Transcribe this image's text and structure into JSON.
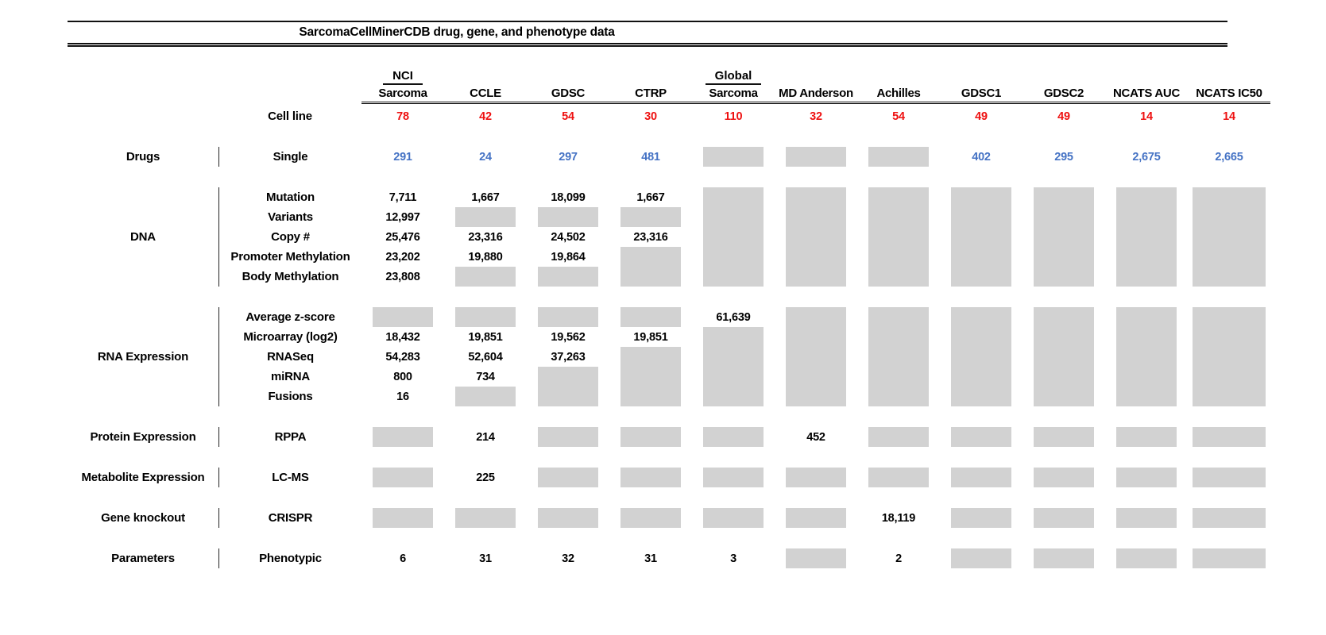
{
  "colors": {
    "cell_line_count_red": "#EE1111",
    "drug_value_blue": "#4472C4",
    "missing_data_gray": "#D2D2D2"
  },
  "chart_data": {
    "type": "table",
    "title": "SarcomaCellMinerCDB drug, gene, and phenotype data",
    "cell_line_header_label": "Cell line",
    "columns": [
      {
        "top": "NCI",
        "label": "Sarcoma"
      },
      {
        "label": "CCLE"
      },
      {
        "label": "GDSC"
      },
      {
        "label": "CTRP"
      },
      {
        "top": "Global",
        "label": "Sarcoma"
      },
      {
        "label": "MD Anderson"
      },
      {
        "label": "Achilles"
      },
      {
        "label": "GDSC1"
      },
      {
        "label": "GDSC2"
      },
      {
        "label": "NCATS AUC"
      },
      {
        "label": "NCATS IC50"
      }
    ],
    "cell_line_counts": [
      "78",
      "42",
      "54",
      "30",
      "110",
      "32",
      "54",
      "49",
      "49",
      "14",
      "14"
    ],
    "sections": [
      {
        "category": "Drugs",
        "rows": [
          {
            "label": "Single",
            "style": "blue",
            "values": [
              "291",
              "24",
              "297",
              "481",
              null,
              null,
              null,
              "402",
              "295",
              "2,675",
              "2,665"
            ]
          }
        ]
      },
      {
        "category": "DNA",
        "rows": [
          {
            "label": "Mutation",
            "values": [
              "7,711",
              "1,667",
              "18,099",
              "1,667",
              null,
              null,
              null,
              null,
              null,
              null,
              null
            ]
          },
          {
            "label": "Variants",
            "values": [
              "12,997",
              null,
              null,
              null,
              null,
              null,
              null,
              null,
              null,
              null,
              null
            ]
          },
          {
            "label": "Copy #",
            "values": [
              "25,476",
              "23,316",
              "24,502",
              "23,316",
              null,
              null,
              null,
              null,
              null,
              null,
              null
            ]
          },
          {
            "label": "Promoter Methylation",
            "values": [
              "23,202",
              "19,880",
              "19,864",
              null,
              null,
              null,
              null,
              null,
              null,
              null,
              null
            ]
          },
          {
            "label": "Body Methylation",
            "values": [
              "23,808",
              null,
              null,
              null,
              null,
              null,
              null,
              null,
              null,
              null,
              null
            ]
          }
        ]
      },
      {
        "category": "RNA Expression",
        "rows": [
          {
            "label": "Average z-score",
            "values": [
              null,
              null,
              null,
              null,
              "61,639",
              null,
              null,
              null,
              null,
              null,
              null
            ]
          },
          {
            "label": "Microarray (log2)",
            "values": [
              "18,432",
              "19,851",
              "19,562",
              "19,851",
              null,
              null,
              null,
              null,
              null,
              null,
              null
            ]
          },
          {
            "label": "RNASeq",
            "values": [
              "54,283",
              "52,604",
              "37,263",
              null,
              null,
              null,
              null,
              null,
              null,
              null,
              null
            ]
          },
          {
            "label": "miRNA",
            "values": [
              "800",
              "734",
              null,
              null,
              null,
              null,
              null,
              null,
              null,
              null,
              null
            ]
          },
          {
            "label": "Fusions",
            "values": [
              "16",
              null,
              null,
              null,
              null,
              null,
              null,
              null,
              null,
              null,
              null
            ]
          }
        ]
      },
      {
        "category": "Protein Expression",
        "rows": [
          {
            "label": "RPPA",
            "values": [
              null,
              "214",
              null,
              null,
              null,
              "452",
              null,
              null,
              null,
              null,
              null
            ]
          }
        ]
      },
      {
        "category": "Metabolite Expression",
        "rows": [
          {
            "label": "LC-MS",
            "values": [
              null,
              "225",
              null,
              null,
              null,
              null,
              null,
              null,
              null,
              null,
              null
            ]
          }
        ]
      },
      {
        "category": "Gene knockout",
        "rows": [
          {
            "label": "CRISPR",
            "values": [
              null,
              null,
              null,
              null,
              null,
              null,
              "18,119",
              null,
              null,
              null,
              null
            ]
          }
        ]
      },
      {
        "category": "Parameters",
        "rows": [
          {
            "label": "Phenotypic",
            "values": [
              "6",
              "31",
              "32",
              "31",
              "3",
              null,
              "2",
              null,
              null,
              null,
              null
            ]
          }
        ]
      }
    ]
  }
}
